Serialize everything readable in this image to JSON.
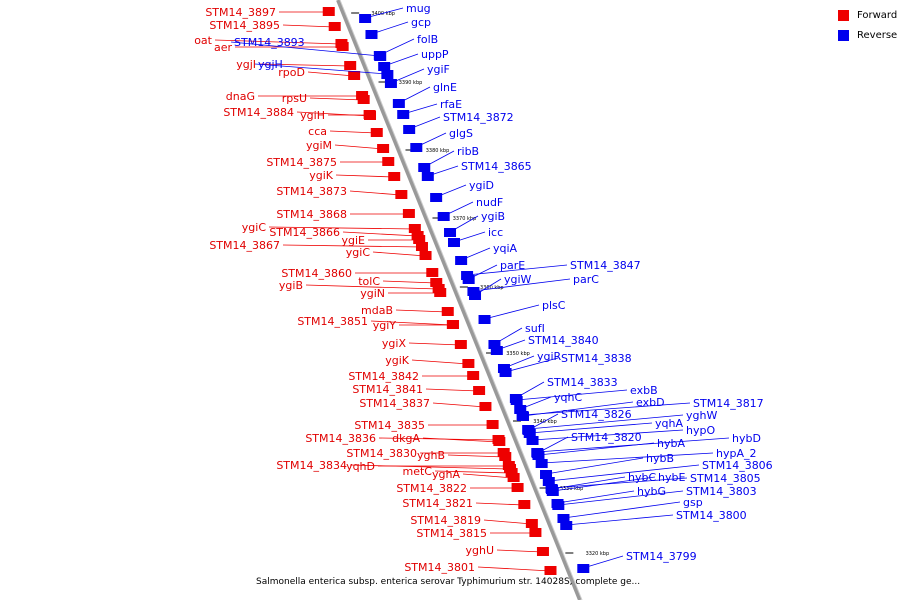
{
  "legend": {
    "forward": {
      "label": "Forward",
      "color": "#ee0000"
    },
    "reverse": {
      "label": "Reverse",
      "color": "#0000ee"
    }
  },
  "caption": "Salmonella enterica subsp. enterica serovar Typhimurium str. 14028S, complete ge...",
  "strand_colors": {
    "forward": "#ee0000",
    "reverse": "#0000ee",
    "backbone": "#999999"
  },
  "kbp_labels": [
    "3400 kbp",
    "3390 kbp",
    "3380 kbp",
    "3370 kbp",
    "3360 kbp",
    "3350 kbp",
    "3340 kbp",
    "3330 kbp",
    "3320 kbp"
  ],
  "forward_genes": [
    "STM14_3897",
    "STM14_3895",
    "oat",
    "aer",
    "ygjI",
    "rpoD",
    "dnaG",
    "rpsU",
    "STM14_3884",
    "ygiH",
    "cca",
    "ygiM",
    "STM14_3875",
    "ygiK",
    "STM14_3873",
    "STM14_3868",
    "ygiC",
    "STM14_3866",
    "ygiE",
    "STM14_3867",
    "ygiC",
    "STM14_3860",
    "tolC",
    "ygiB",
    "ygiN",
    "mdaB",
    "STM14_3851",
    "ygiY",
    "ygiX",
    "ygiK",
    "STM14_3842",
    "STM14_3841",
    "STM14_3837",
    "STM14_3835",
    "STM14_3836",
    "dkgA",
    "STM14_3830",
    "yghB",
    "STM14_3834",
    "yqhD",
    "metC",
    "yghA",
    "STM14_3822",
    "STM14_3821",
    "STM14_3819",
    "STM14_3815",
    "yghU",
    "STM14_3801"
  ],
  "reverse_genes": [
    "mug",
    "gcp",
    "STM14_3893",
    "folB",
    "ygjH",
    "uppP",
    "ygiF",
    "glnE",
    "rfaE",
    "STM14_3872",
    "glgS",
    "ribB",
    "STM14_3865",
    "ygiD",
    "nudF",
    "ygiB",
    "icc",
    "yqiA",
    "parE",
    "ygiW",
    "STM14_3847",
    "parC",
    "plsC",
    "sufI",
    "STM14_3840",
    "ygiR",
    "STM14_3838",
    "STM14_3833",
    "exbB",
    "yqhC",
    "exbD",
    "STM14_3826",
    "yqhA",
    "STM14_3817",
    "yghW",
    "STM14_3820",
    "hypO",
    "hybA",
    "hybD",
    "hybB",
    "hypA_2",
    "hybC",
    "hybE",
    "STM14_3806",
    "STM14_3805",
    "hybG",
    "STM14_3803",
    "gsp",
    "STM14_3800",
    "STM14_3799"
  ]
}
